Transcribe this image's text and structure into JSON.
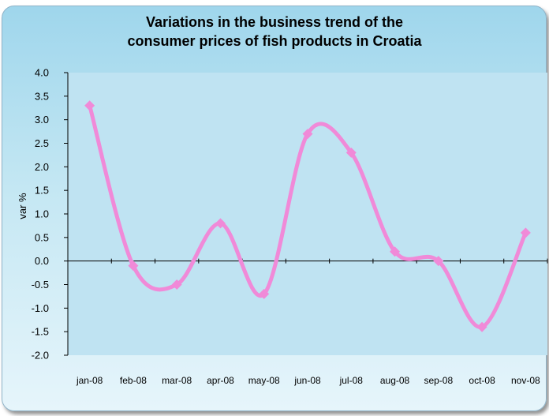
{
  "chart_data": {
    "type": "line",
    "title_lines": [
      "Variations in the business trend of the",
      "consumer prices of fish products in Croatia"
    ],
    "ylabel": "var %",
    "xlabel": "",
    "categories": [
      "jan-08",
      "feb-08",
      "mar-08",
      "apr-08",
      "may-08",
      "jun-08",
      "jul-08",
      "aug-08",
      "sep-08",
      "oct-08",
      "nov-08"
    ],
    "series": [
      {
        "values": [
          3.3,
          -0.1,
          -0.5,
          0.8,
          -0.7,
          2.7,
          2.3,
          0.2,
          0.0,
          -1.4,
          0.6
        ]
      }
    ],
    "ylim": [
      -2.0,
      4.0
    ],
    "y_ticks": [
      "-2.0",
      "-1.5",
      "-1.0",
      "-0.5",
      "0.0",
      "0.5",
      "1.0",
      "1.5",
      "2.0",
      "2.5",
      "3.0",
      "3.5",
      "4.0"
    ],
    "smooth": true,
    "grid": false,
    "legend": "none",
    "colors": {
      "line": "#f08ad8",
      "marker": "#f08ad8",
      "plot_area": "#bfe3f2",
      "axis": "#000000"
    }
  }
}
